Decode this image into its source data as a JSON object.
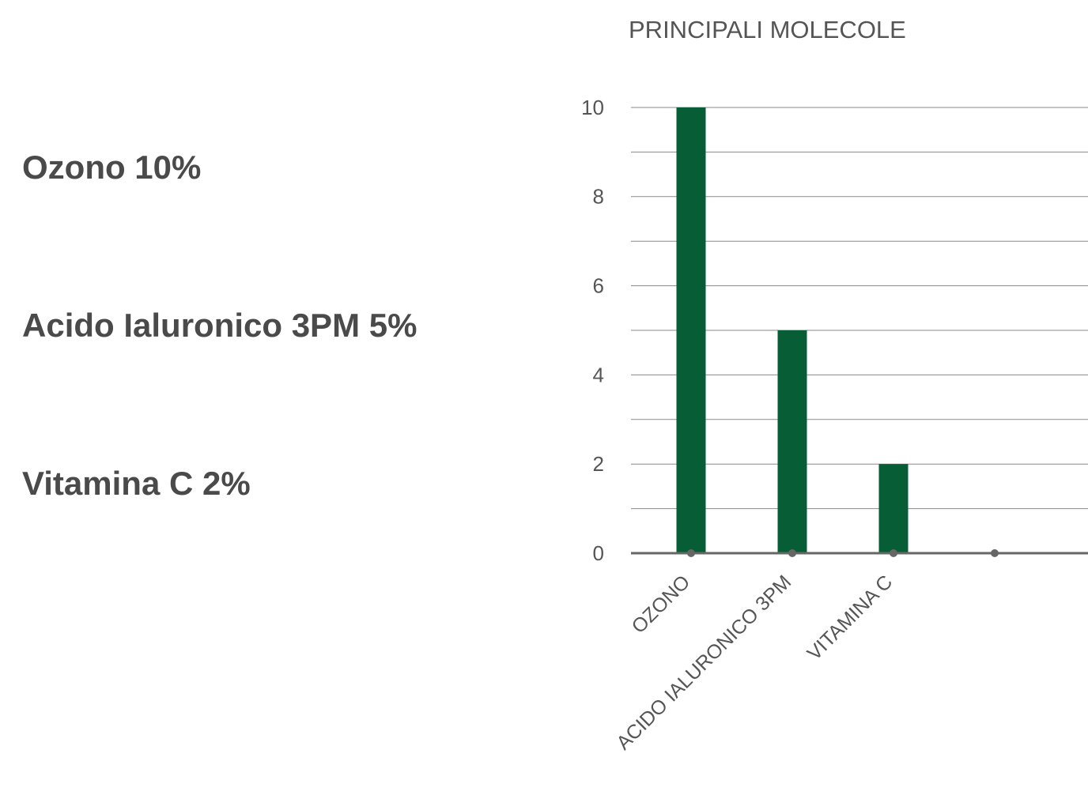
{
  "ingredients": [
    "Ozono 10%",
    "Acido Ialuronico 3PM 5%",
    "Vitamina C 2%"
  ],
  "chart_data": {
    "type": "bar",
    "title": "PRINCIPALI MOLECOLE",
    "categories": [
      "OZONO",
      "ACIDO IALURONICO 3PM",
      "VITAMINA C",
      ""
    ],
    "values": [
      10,
      5,
      2,
      null
    ],
    "y_ticks": [
      0,
      2,
      4,
      6,
      8,
      10
    ],
    "ylim": [
      0,
      10
    ],
    "grid": true,
    "legend": "none",
    "bar_color": "#075e36",
    "grid_color": "#8a8a8a",
    "axis_color": "#666666",
    "text_color": "#555555"
  }
}
